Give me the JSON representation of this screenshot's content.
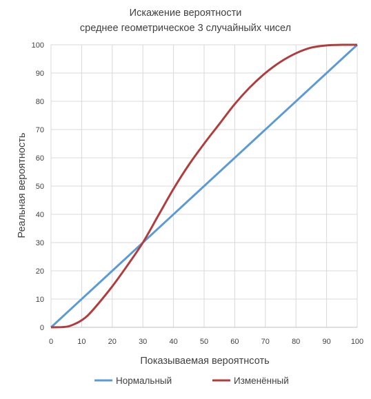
{
  "chart_data": {
    "type": "line",
    "title": "Искажение вероятности",
    "subtitle": "среднее геометрическое  3 случайныйх чисел",
    "xlabel": "Показываемая вероятнсоть",
    "ylabel": "Реальная вероятность",
    "xlim": [
      0,
      100
    ],
    "ylim": [
      0,
      100
    ],
    "x_ticks": [
      "0",
      "10",
      "20",
      "30",
      "40",
      "50",
      "60",
      "70",
      "80",
      "90",
      "100"
    ],
    "y_ticks": [
      "0",
      "10",
      "20",
      "30",
      "40",
      "50",
      "60",
      "70",
      "80",
      "90",
      "100"
    ],
    "grid": true,
    "legend_position": "bottom",
    "series": [
      {
        "name": "Нормальный",
        "color": "#5b9bd5",
        "x": [
          0,
          100
        ],
        "y": [
          0,
          100
        ]
      },
      {
        "name": "Изменённый",
        "color": "#b23b3b",
        "x": [
          0,
          5,
          8,
          10,
          12,
          15,
          20,
          25,
          30,
          35,
          40,
          45,
          50,
          55,
          60,
          65,
          70,
          75,
          80,
          85,
          90,
          95,
          100
        ],
        "y": [
          0,
          0.2,
          1.3,
          2.5,
          4.2,
          7.8,
          14.5,
          22.0,
          30.0,
          39.5,
          49.0,
          57.5,
          65.0,
          72.0,
          79.0,
          85.0,
          90.0,
          94.0,
          97.0,
          99.0,
          99.8,
          100,
          100
        ]
      }
    ]
  }
}
